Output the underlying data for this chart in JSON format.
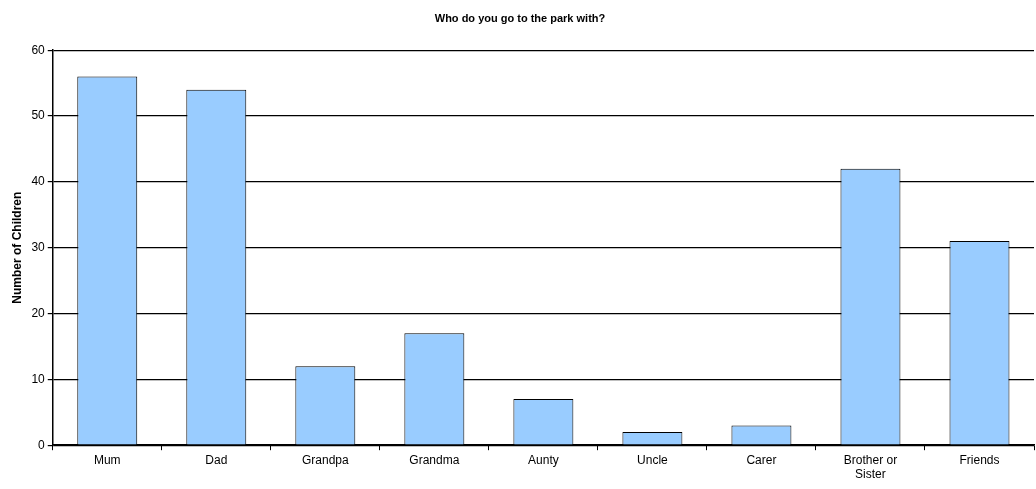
{
  "chart_data": {
    "type": "bar",
    "title": "Who do you go to the park with?",
    "ylabel": "Number of Children",
    "categories": [
      "Mum",
      "Dad",
      "Grandpa",
      "Grandma",
      "Aunty",
      "Uncle",
      "Carer",
      "Brother or Sister",
      "Friends"
    ],
    "values": [
      56,
      54,
      12,
      17,
      7,
      2,
      3,
      42,
      31
    ],
    "color": "#99ccff",
    "ylim": [
      0,
      60
    ],
    "yticks": [
      0,
      10,
      20,
      30,
      40,
      50,
      60
    ],
    "grid": "y",
    "legend": false
  }
}
